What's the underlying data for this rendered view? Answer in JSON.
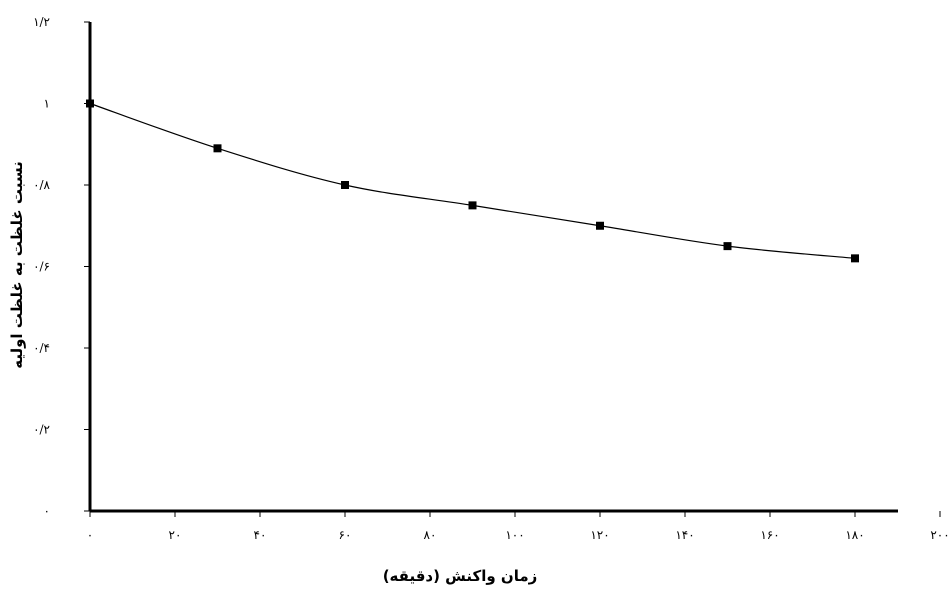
{
  "chart_data": {
    "type": "line",
    "title": "",
    "xlabel": "زمان واکنش (دقیقه)",
    "ylabel": "نسبت غلظت به غلظت اولیه",
    "xlim": [
      0,
      200
    ],
    "ylim": [
      0,
      1.2
    ],
    "x_ticks": [
      {
        "value": 0,
        "label": "۰"
      },
      {
        "value": 20,
        "label": "۲۰"
      },
      {
        "value": 40,
        "label": "۴۰"
      },
      {
        "value": 60,
        "label": "۶۰"
      },
      {
        "value": 80,
        "label": "۸۰"
      },
      {
        "value": 100,
        "label": "۱۰۰"
      },
      {
        "value": 120,
        "label": "۱۲۰"
      },
      {
        "value": 140,
        "label": "۱۴۰"
      },
      {
        "value": 160,
        "label": "۱۶۰"
      },
      {
        "value": 180,
        "label": "۱۸۰"
      },
      {
        "value": 200,
        "label": "۲۰۰"
      }
    ],
    "y_ticks": [
      {
        "value": 0,
        "label": "۰"
      },
      {
        "value": 0.2,
        "label": "۰/۲"
      },
      {
        "value": 0.4,
        "label": "۰/۴"
      },
      {
        "value": 0.6,
        "label": "۰/۶"
      },
      {
        "value": 0.8,
        "label": "۰/۸"
      },
      {
        "value": 1.0,
        "label": "۱"
      },
      {
        "value": 1.2,
        "label": "۱/۲"
      }
    ],
    "grid": false,
    "legend": "none",
    "series": [
      {
        "color": "#000000",
        "marker": "square",
        "x": [
          0,
          30,
          60,
          90,
          120,
          150,
          180
        ],
        "y": [
          1.0,
          0.89,
          0.8,
          0.75,
          0.7,
          0.65,
          0.62
        ]
      }
    ]
  }
}
